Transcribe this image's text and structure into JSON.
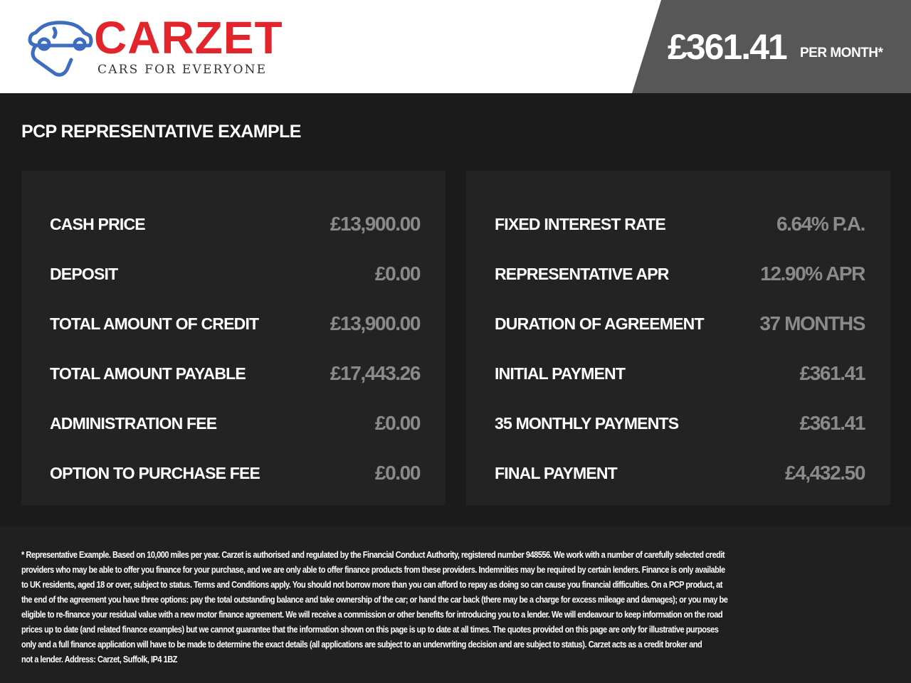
{
  "header": {
    "brand": "CARZET",
    "tagline": "CARS FOR EVERYONE",
    "price": "£361.41",
    "price_suffix": "PER MONTH*",
    "brand_color": "#e3242b",
    "logo_icon_color": "#3d6cc0"
  },
  "title": "PCP REPRESENTATIVE EXAMPLE",
  "left_panel": [
    {
      "label": "CASH PRICE",
      "value": "£13,900.00"
    },
    {
      "label": "DEPOSIT",
      "value": "£0.00"
    },
    {
      "label": "TOTAL AMOUNT OF CREDIT",
      "value": "£13,900.00"
    },
    {
      "label": "TOTAL AMOUNT PAYABLE",
      "value": "£17,443.26"
    },
    {
      "label": "ADMINISTRATION FEE",
      "value": "£0.00"
    },
    {
      "label": "OPTION TO PURCHASE FEE",
      "value": "£0.00"
    }
  ],
  "right_panel": [
    {
      "label": "FIXED INTEREST RATE",
      "value": "6.64% P.A."
    },
    {
      "label": "REPRESENTATIVE APR",
      "value": "12.90% APR"
    },
    {
      "label": "DURATION OF AGREEMENT",
      "value": "37 MONTHS"
    },
    {
      "label": "INITIAL PAYMENT",
      "value": "£361.41"
    },
    {
      "label": "35 MONTHLY PAYMENTS",
      "value": "£361.41"
    },
    {
      "label": "FINAL PAYMENT",
      "value": "£4,432.50"
    }
  ],
  "disclaimer_lines": [
    "* Representative Example. Based on 10,000 miles per year. Carzet is authorised and regulated by the Financial Conduct Authority, registered number 948556. We work with a number of carefully selected credit",
    "providers who may be able to offer you finance for your purchase, and we are only able to offer finance products from these providers. Indemnities may be required by certain lenders. Finance is only available",
    "to UK residents, aged 18 or over, subject to status. Terms and Conditions apply. You should not borrow more than you can afford to repay as doing so can cause you financial difficulties. On a PCP product, at",
    "the end of the agreement you have three options: pay the total outstanding balance and take ownership of the car; or hand the car back (there may be a charge for excess mileage and damages); or you may be",
    "eligible to re-finance your residual value with a new motor finance agreement. We will receive a commission or other benefits for introducing you to a lender. We will endeavour to keep information on the road",
    "prices up to date (and related finance examples) but we cannot guarantee that the information shown on this page is up to date at all times. The quotes provided on this page are only for illustrative purposes",
    "only and a full finance application will have to be made to determine the exact details (all applications are subject to an underwriting decision and are subject to status). Carzet acts as a credit broker and",
    "not a lender. Address: Carzet, Suffolk, IP4 1BZ"
  ]
}
